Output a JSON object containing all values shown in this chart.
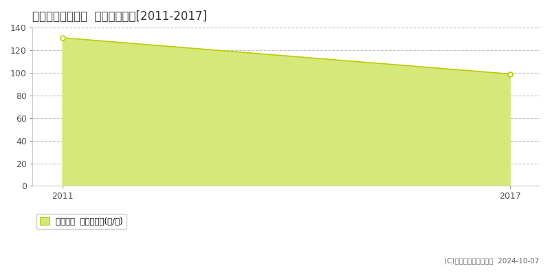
{
  "title": "高岡郡樾原町東向  林地価格推移[2011-2017]",
  "years": [
    2011,
    2017
  ],
  "values": [
    131,
    99
  ],
  "line_color": "#b8cc00",
  "fill_color": "#d6e87a",
  "bg_color": "#ffffff",
  "plot_bg_color": "#ffffff",
  "grid_color": "#bbbbbb",
  "xlim": [
    2010.6,
    2017.4
  ],
  "ylim": [
    0,
    140
  ],
  "yticks": [
    0,
    20,
    40,
    60,
    80,
    100,
    120,
    140
  ],
  "xticks": [
    2011,
    2017
  ],
  "legend_label": "林地価格  平均嵪単価(円/嵪)",
  "copyright": "(C)土地価格ドットコム  2024-10-07"
}
